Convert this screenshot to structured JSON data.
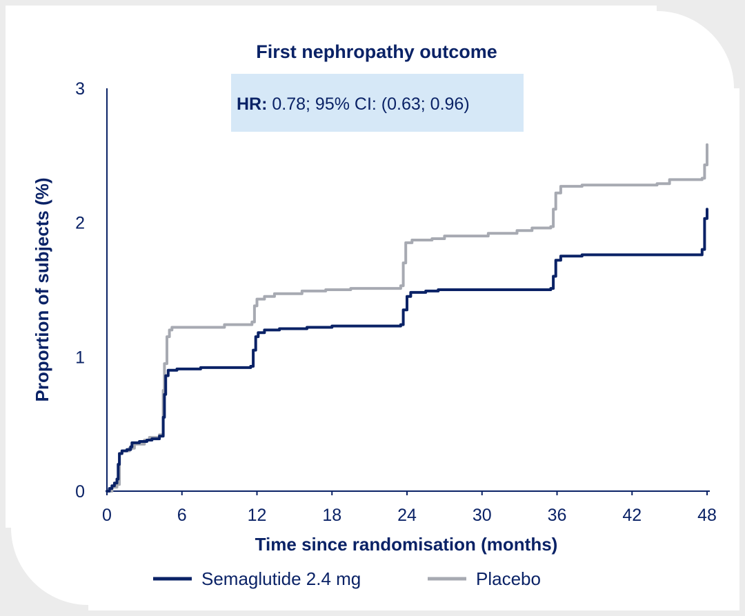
{
  "colors": {
    "navy": "#0a2266",
    "grey": "#a7aab2",
    "hr_box": "#d6e8f7",
    "frame": "#ececec"
  },
  "chart_data": {
    "type": "line",
    "title": "First nephropathy outcome",
    "annotation": {
      "bold": "HR:",
      "text": " 0.78; 95% CI: (0.63; 0.96)"
    },
    "xlabel": "Time since randomisation (months)",
    "ylabel": "Proportion of subjects (%)",
    "xlim": [
      0,
      48
    ],
    "ylim": [
      0,
      3
    ],
    "xticks": [
      0,
      6,
      12,
      18,
      24,
      30,
      36,
      42,
      48
    ],
    "yticks": [
      0,
      1,
      2,
      3
    ],
    "grid": false,
    "legend_position": "bottom",
    "series": [
      {
        "name": "Semaglutide 2.4 mg",
        "color": "#0a2266",
        "step": true,
        "points": [
          [
            0,
            0
          ],
          [
            0.2,
            0.02
          ],
          [
            0.4,
            0.04
          ],
          [
            0.6,
            0.06
          ],
          [
            0.8,
            0.09
          ],
          [
            0.9,
            0.2
          ],
          [
            1.0,
            0.28
          ],
          [
            1.2,
            0.3
          ],
          [
            1.6,
            0.31
          ],
          [
            1.9,
            0.33
          ],
          [
            2.0,
            0.36
          ],
          [
            2.6,
            0.37
          ],
          [
            3.2,
            0.38
          ],
          [
            3.6,
            0.39
          ],
          [
            4.2,
            0.41
          ],
          [
            4.5,
            0.55
          ],
          [
            4.6,
            0.72
          ],
          [
            4.7,
            0.86
          ],
          [
            4.9,
            0.9
          ],
          [
            5.6,
            0.91
          ],
          [
            7.5,
            0.92
          ],
          [
            11.5,
            0.93
          ],
          [
            11.7,
            1.05
          ],
          [
            11.9,
            1.15
          ],
          [
            12.1,
            1.18
          ],
          [
            12.6,
            1.2
          ],
          [
            13.8,
            1.21
          ],
          [
            16.0,
            1.22
          ],
          [
            18.0,
            1.23
          ],
          [
            23.5,
            1.24
          ],
          [
            23.7,
            1.35
          ],
          [
            24.0,
            1.45
          ],
          [
            24.3,
            1.48
          ],
          [
            25.5,
            1.49
          ],
          [
            26.5,
            1.5
          ],
          [
            35.5,
            1.51
          ],
          [
            35.7,
            1.6
          ],
          [
            35.9,
            1.72
          ],
          [
            36.3,
            1.75
          ],
          [
            38.0,
            1.76
          ],
          [
            47.6,
            1.8
          ],
          [
            47.8,
            2.03
          ],
          [
            48.0,
            2.1
          ]
        ]
      },
      {
        "name": "Placebo",
        "color": "#a7aab2",
        "step": true,
        "points": [
          [
            0,
            0
          ],
          [
            0.4,
            0.03
          ],
          [
            0.8,
            0.05
          ],
          [
            1.0,
            0.28
          ],
          [
            1.2,
            0.3
          ],
          [
            1.8,
            0.32
          ],
          [
            2.2,
            0.35
          ],
          [
            3.0,
            0.38
          ],
          [
            3.4,
            0.4
          ],
          [
            4.2,
            0.42
          ],
          [
            4.5,
            0.75
          ],
          [
            4.6,
            0.95
          ],
          [
            4.8,
            1.15
          ],
          [
            5.0,
            1.2
          ],
          [
            5.2,
            1.22
          ],
          [
            8.0,
            1.22
          ],
          [
            9.4,
            1.24
          ],
          [
            11.6,
            1.26
          ],
          [
            11.8,
            1.38
          ],
          [
            12.0,
            1.43
          ],
          [
            12.6,
            1.45
          ],
          [
            13.4,
            1.47
          ],
          [
            15.6,
            1.49
          ],
          [
            17.5,
            1.5
          ],
          [
            19.5,
            1.51
          ],
          [
            23.5,
            1.53
          ],
          [
            23.7,
            1.7
          ],
          [
            23.9,
            1.85
          ],
          [
            24.4,
            1.87
          ],
          [
            26.0,
            1.88
          ],
          [
            27.0,
            1.9
          ],
          [
            30.5,
            1.92
          ],
          [
            32.8,
            1.94
          ],
          [
            34.0,
            1.96
          ],
          [
            35.5,
            1.97
          ],
          [
            35.7,
            2.1
          ],
          [
            35.9,
            2.22
          ],
          [
            36.3,
            2.27
          ],
          [
            38.0,
            2.28
          ],
          [
            44.0,
            2.29
          ],
          [
            45.0,
            2.32
          ],
          [
            47.6,
            2.33
          ],
          [
            47.8,
            2.43
          ],
          [
            48.0,
            2.58
          ]
        ]
      }
    ]
  }
}
